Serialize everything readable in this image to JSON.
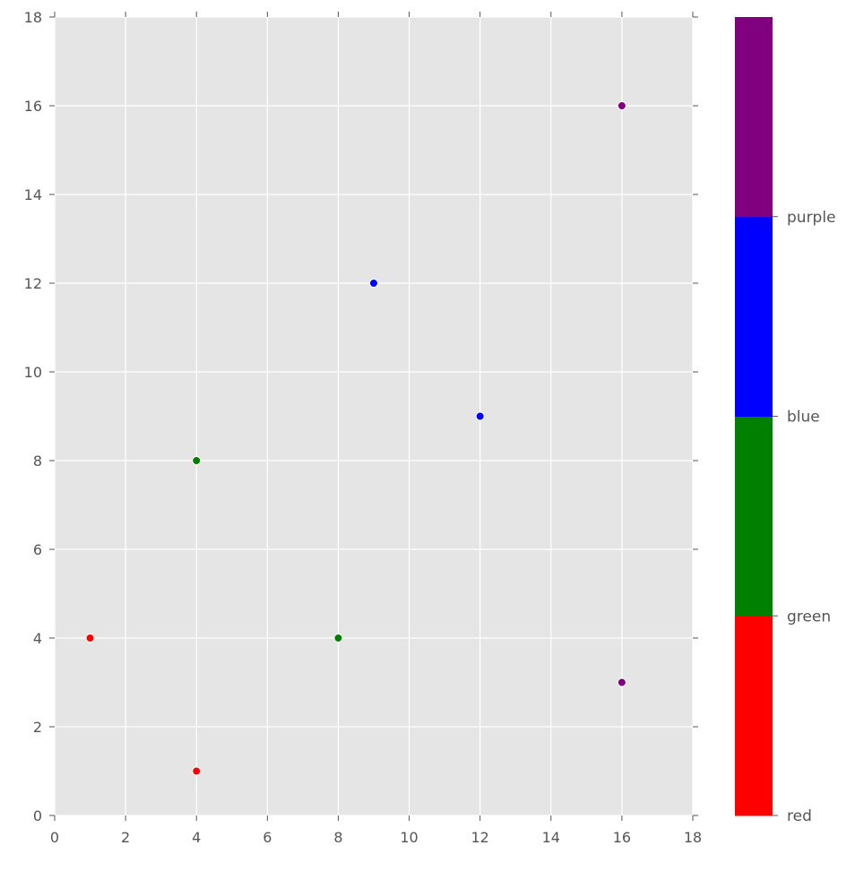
{
  "chart_data": {
    "type": "scatter",
    "title": "",
    "xlabel": "",
    "ylabel": "",
    "xlim": [
      0,
      18
    ],
    "ylim": [
      0,
      18
    ],
    "x_ticks": [
      0,
      2,
      4,
      6,
      8,
      10,
      12,
      14,
      16,
      18
    ],
    "y_ticks": [
      0,
      2,
      4,
      6,
      8,
      10,
      12,
      14,
      16,
      18
    ],
    "grid": true,
    "style": "ggplot",
    "points": [
      {
        "x": 1,
        "y": 4,
        "category": "red"
      },
      {
        "x": 4,
        "y": 1,
        "category": "red"
      },
      {
        "x": 4,
        "y": 8,
        "category": "green"
      },
      {
        "x": 8,
        "y": 4,
        "category": "green"
      },
      {
        "x": 9,
        "y": 12,
        "category": "blue"
      },
      {
        "x": 12,
        "y": 9,
        "category": "blue"
      },
      {
        "x": 16,
        "y": 16,
        "category": "purple"
      },
      {
        "x": 16,
        "y": 3,
        "category": "purple"
      }
    ],
    "colorbar": {
      "categories": [
        "red",
        "green",
        "blue",
        "purple"
      ],
      "colors": [
        "#ff0000",
        "#008000",
        "#0000ff",
        "#800080"
      ],
      "tick_labels": [
        "red",
        "green",
        "blue",
        "purple"
      ]
    }
  },
  "colors": {
    "plot_background": "#e5e5e5",
    "grid": "#ffffff",
    "tick_text": "#555555",
    "point_edge": "#ffffff"
  }
}
